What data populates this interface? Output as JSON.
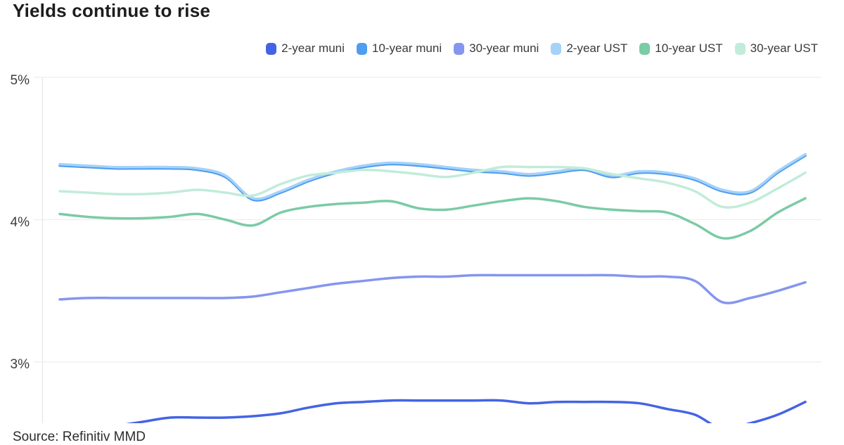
{
  "header": {
    "title": "Yields continue to rise"
  },
  "footer": {
    "source": "Source: Refinitiv MMD"
  },
  "chart_data": {
    "type": "line",
    "title": "Yields continue to rise",
    "source": "Source: Refinitiv MMD",
    "legend_position": "top-right",
    "grid": "horizontal",
    "background": "#ffffff",
    "y_axis": {
      "unit": "%",
      "ticks": [
        {
          "label": "5%",
          "value": 5
        },
        {
          "label": "4%",
          "value": 4
        },
        {
          "label": "3%",
          "value": 3
        }
      ],
      "visible_range": [
        2.57,
        5.0
      ]
    },
    "x_axis": {
      "tick_labels_visible": false,
      "points": 28
    },
    "colors": {
      "grid": "#ededed",
      "axis_line": "#e3e3e3",
      "title_text": "#1d1d1d",
      "legend_text": "#3a3a3a",
      "tick_text": "#3d3d3d",
      "source_text": "#2d2d2d"
    },
    "series": [
      {
        "label": "2-year muni",
        "color": "#4464e4",
        "values": [
          2.5,
          2.52,
          2.55,
          2.58,
          2.61,
          2.61,
          2.61,
          2.62,
          2.64,
          2.68,
          2.71,
          2.72,
          2.73,
          2.73,
          2.73,
          2.73,
          2.73,
          2.71,
          2.72,
          2.72,
          2.72,
          2.71,
          2.67,
          2.63,
          2.53,
          2.57,
          2.63,
          2.72
        ]
      },
      {
        "label": "10-year muni",
        "color": "#4e9df0",
        "values": [
          4.38,
          4.37,
          4.36,
          4.36,
          4.36,
          4.35,
          4.3,
          4.14,
          4.19,
          4.27,
          4.33,
          4.37,
          4.39,
          4.38,
          4.36,
          4.34,
          4.33,
          4.31,
          4.33,
          4.35,
          4.3,
          4.33,
          4.32,
          4.28,
          4.2,
          4.19,
          4.33,
          4.45
        ]
      },
      {
        "label": "30-year muni",
        "color": "#8496ee",
        "values": [
          3.44,
          3.45,
          3.45,
          3.45,
          3.45,
          3.45,
          3.45,
          3.46,
          3.49,
          3.52,
          3.55,
          3.57,
          3.59,
          3.6,
          3.6,
          3.61,
          3.61,
          3.61,
          3.61,
          3.61,
          3.61,
          3.6,
          3.6,
          3.57,
          3.42,
          3.45,
          3.5,
          3.56
        ]
      },
      {
        "label": "2-year UST",
        "color": "#a5d2f8",
        "values": [
          4.39,
          4.38,
          4.37,
          4.37,
          4.37,
          4.36,
          4.31,
          4.15,
          4.2,
          4.28,
          4.34,
          4.38,
          4.4,
          4.39,
          4.37,
          4.35,
          4.34,
          4.32,
          4.34,
          4.36,
          4.31,
          4.34,
          4.33,
          4.29,
          4.21,
          4.2,
          4.34,
          4.46
        ]
      },
      {
        "label": "10-year UST",
        "color": "#7bcba4",
        "values": [
          4.04,
          4.02,
          4.01,
          4.01,
          4.02,
          4.04,
          4.0,
          3.96,
          4.05,
          4.09,
          4.11,
          4.12,
          4.13,
          4.08,
          4.07,
          4.1,
          4.13,
          4.15,
          4.13,
          4.09,
          4.07,
          4.06,
          4.05,
          3.97,
          3.87,
          3.92,
          4.05,
          4.15
        ]
      },
      {
        "label": "30-year UST",
        "color": "#c1ecd9",
        "values": [
          4.2,
          4.19,
          4.18,
          4.18,
          4.19,
          4.21,
          4.19,
          4.17,
          4.25,
          4.31,
          4.33,
          4.35,
          4.34,
          4.32,
          4.3,
          4.33,
          4.37,
          4.37,
          4.37,
          4.36,
          4.32,
          4.29,
          4.26,
          4.2,
          4.09,
          4.12,
          4.22,
          4.33
        ]
      }
    ]
  }
}
